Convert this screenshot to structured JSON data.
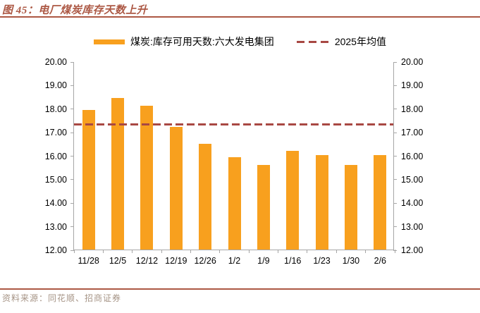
{
  "header": {
    "title": "图 45：电厂煤炭库存天数上升"
  },
  "legend": {
    "series_label": "煤炭:库存可用天数:六大发电集团",
    "mean_label": "2025年均值"
  },
  "chart_data": {
    "type": "bar",
    "title": "电厂煤炭库存天数上升",
    "categories": [
      "11/28",
      "12/5",
      "12/12",
      "12/19",
      "12/26",
      "1/2",
      "1/9",
      "1/16",
      "1/23",
      "1/30",
      "2/6"
    ],
    "series": [
      {
        "name": "煤炭:库存可用天数:六大发电集团",
        "values": [
          17.93,
          18.44,
          18.11,
          17.22,
          16.49,
          15.93,
          15.6,
          16.19,
          16.01,
          15.6,
          16.01
        ]
      }
    ],
    "mean_line": {
      "label": "2025年均值",
      "value": 17.35
    },
    "ylim": [
      12,
      20
    ],
    "ytick_step": 1,
    "ytick_decimals": 2,
    "grid": false,
    "legend_position": "top",
    "bar_color": "#F8A01E",
    "mean_line_color": "#A84843",
    "axis_color": "#A6A6A6"
  },
  "footer": {
    "source": "资料来源：同花顺、招商证券"
  },
  "colors": {
    "accent": "#AC5844",
    "bar": "#F8A01E",
    "dash": "#A84843"
  }
}
